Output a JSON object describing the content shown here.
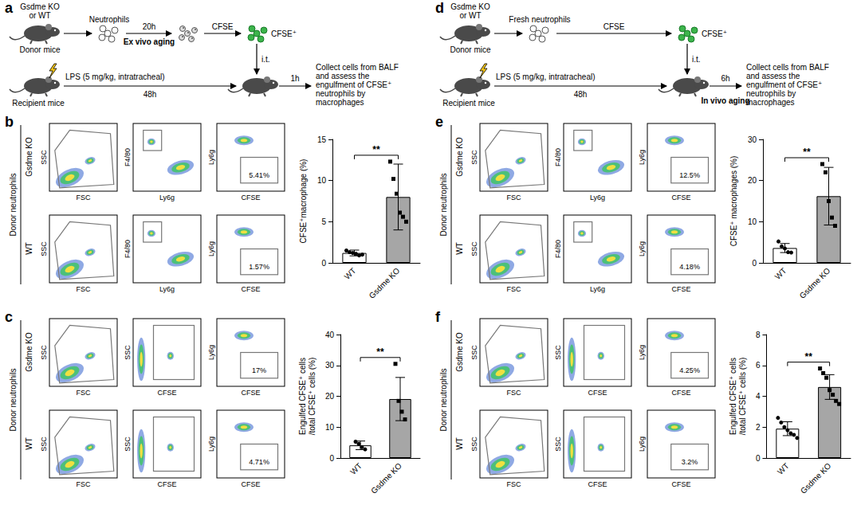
{
  "schematics": [
    {
      "label": "a",
      "donor_genotype": "Gsdme KO or WT",
      "donor": "Donor mice",
      "cells": "Neutrophils",
      "aging_time": "20h",
      "aging": "Ex vivo aging",
      "stain": "CFSE",
      "stained": "CFSE⁺",
      "route": "i.t.",
      "treatment": "LPS (5 mg/kg, intratracheal)",
      "recipient": "Recipient mice",
      "treatment_time": "48h",
      "wait_time": "1h",
      "readout": "Collect cells from BALF and assess the engulfment of CFSE⁺ neutrophils by macrophages"
    },
    {
      "label": "d",
      "donor_genotype": "Gsdme KO or WT",
      "donor": "Donor mice",
      "cells": "Fresh neutrophils",
      "stain": "CFSE",
      "stained": "CFSE⁺",
      "route": "i.t.",
      "treatment": "LPS (5 mg/kg, intratracheal)",
      "recipient": "Recipient mice",
      "treatment_time": "48h",
      "wait_time": "6h",
      "wait_aging": "In vivo aging",
      "readout": "Collect cells from BALF and assess the engulfment of CFSE⁺ neutrophils by macrophages"
    }
  ],
  "flow": [
    {
      "label": "b",
      "group": "Donor neutrophils",
      "rows": [
        {
          "name": "Gsdme KO",
          "percent": "5.41%"
        },
        {
          "name": "WT",
          "percent": "1.57%"
        }
      ],
      "plots": [
        {
          "x": "FSC",
          "y": "SSC"
        },
        {
          "x": "Ly6g",
          "y": "F4/80"
        },
        {
          "x": "CFSE",
          "y": "Ly6g"
        }
      ]
    },
    {
      "label": "c",
      "group": "Donor neutrophils",
      "rows": [
        {
          "name": "Gsdme KO",
          "percent": "17%"
        },
        {
          "name": "WT",
          "percent": "4.71%"
        }
      ],
      "plots": [
        {
          "x": "FSC",
          "y": "SSC"
        },
        {
          "x": "CFSE",
          "y": "SSC"
        },
        {
          "x": "CFSE",
          "y": "Ly6g"
        }
      ]
    },
    {
      "label": "e",
      "group": "Donor neutrophils",
      "rows": [
        {
          "name": "Gsdme KO",
          "percent": "12.5%"
        },
        {
          "name": "WT",
          "percent": "4.18%"
        }
      ],
      "plots": [
        {
          "x": "FSC",
          "y": "SSC"
        },
        {
          "x": "Ly6g",
          "y": "F4/80"
        },
        {
          "x": "CFSE",
          "y": "Ly6g"
        }
      ]
    },
    {
      "label": "f",
      "group": "Donor neutrophils",
      "rows": [
        {
          "name": "Gsdme KO",
          "percent": "4.25%"
        },
        {
          "name": "WT",
          "percent": "3.2%"
        }
      ],
      "plots": [
        {
          "x": "FSC",
          "y": "SSC"
        },
        {
          "x": "CFSE",
          "y": "SSC"
        },
        {
          "x": "CFSE",
          "y": "Ly6g"
        }
      ]
    }
  ],
  "chart_data": [
    {
      "type": "bar",
      "categories": [
        "WT",
        "Gsdme KO"
      ],
      "values": [
        1.2,
        8.0
      ],
      "errors": [
        0.35,
        4.0
      ],
      "points": [
        {
          "marker": "circle",
          "values": [
            1.5,
            1.3,
            1.2,
            1.1,
            0.9,
            1.0
          ]
        },
        {
          "marker": "square",
          "values": [
            12.3,
            10.2,
            8.4,
            6.1,
            5.6,
            5.0
          ]
        }
      ],
      "colors": [
        "#ffffff",
        "#a6a6a6"
      ],
      "ylabel": "CFSE⁺macrophage (%)",
      "ylim": [
        0,
        15
      ],
      "yticks": [
        0,
        5,
        10,
        15
      ],
      "annotation": "**",
      "grid": false
    },
    {
      "type": "bar",
      "categories": [
        "WT",
        "Gsdme KO"
      ],
      "values": [
        4.1,
        19.1
      ],
      "errors": [
        1.4,
        7.0
      ],
      "points": [
        {
          "marker": "circle",
          "values": [
            5.3,
            4.6,
            3.5,
            2.8
          ]
        },
        {
          "marker": "square",
          "values": [
            30.5,
            18.5,
            15.0,
            12.5
          ]
        }
      ],
      "colors": [
        "#ffffff",
        "#a6a6a6"
      ],
      "ylabel": "Engulfed CFSE⁺ cells /total CFSE⁺ cells (%)",
      "ylim": [
        0,
        40
      ],
      "yticks": [
        0,
        10,
        20,
        30,
        40
      ],
      "annotation": "**",
      "grid": false
    },
    {
      "type": "bar",
      "categories": [
        "WT",
        "Gsdme KO"
      ],
      "values": [
        3.6,
        16.2
      ],
      "errors": [
        1.1,
        7.0
      ],
      "points": [
        {
          "marker": "circle",
          "values": [
            5.2,
            4.0,
            3.5,
            2.6,
            2.5
          ]
        },
        {
          "marker": "square",
          "values": [
            24.0,
            22.0,
            15.0,
            11.0,
            9.0
          ]
        }
      ],
      "colors": [
        "#ffffff",
        "#a6a6a6"
      ],
      "ylabel": "CFSE⁺ macrophages (%)",
      "ylim": [
        0,
        30
      ],
      "yticks": [
        0,
        10,
        20,
        30
      ],
      "annotation": "**",
      "grid": false
    },
    {
      "type": "bar",
      "categories": [
        "WT",
        "Gsdme KO"
      ],
      "values": [
        1.9,
        4.6
      ],
      "errors": [
        0.45,
        0.8
      ],
      "points": [
        {
          "marker": "circle",
          "values": [
            2.6,
            2.3,
            2.0,
            1.8,
            1.6,
            1.5,
            1.3
          ]
        },
        {
          "marker": "square",
          "values": [
            5.8,
            5.5,
            5.2,
            4.4,
            4.1,
            3.7,
            3.5
          ]
        }
      ],
      "colors": [
        "#ffffff",
        "#a6a6a6"
      ],
      "ylabel": "Engulfed CFSE⁺ cells /total CFSE⁺ cells (%)",
      "ylim": [
        0,
        8
      ],
      "yticks": [
        0,
        2,
        4,
        6,
        8
      ],
      "annotation": "**",
      "grid": false
    }
  ]
}
